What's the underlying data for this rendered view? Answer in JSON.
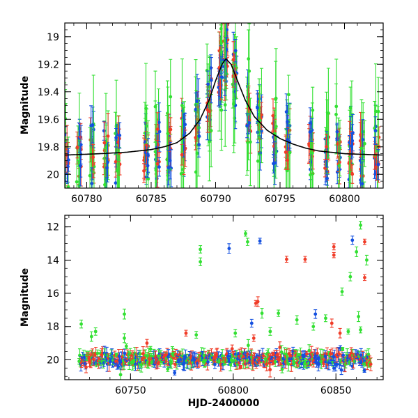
{
  "chart_data": [
    {
      "type": "scatter",
      "panel": "top",
      "title": "",
      "xlabel": "",
      "ylabel": "Magnitude",
      "xlim": [
        60778.3,
        60803
      ],
      "ylim": [
        20.1,
        18.9
      ],
      "y_inverted": true,
      "grid": false,
      "xticks": [
        60780,
        60785,
        60790,
        60795,
        60800
      ],
      "xtick_labels": [
        "60780",
        "60785",
        "60790",
        "60795",
        "60800"
      ],
      "yticks": [
        19,
        19.2,
        19.4,
        19.6,
        19.8,
        20
      ],
      "ytick_labels": [
        "19",
        "19.2",
        "19.4",
        "19.6",
        "19.8",
        "20"
      ],
      "series_colors": {
        "green": "#33e033",
        "blue": "#1450e0",
        "red": "#f03c28"
      },
      "model_curve": {
        "color": "#000000",
        "x": [
          60778.3,
          60781,
          60783,
          60785,
          60786,
          60787,
          60788,
          60788.8,
          60789.5,
          60790,
          60790.5,
          60790.8,
          60791.2,
          60791.7,
          60792.3,
          60793,
          60794,
          60795,
          60796,
          60797,
          60798,
          60799,
          60800,
          60803
        ],
        "y": [
          19.86,
          19.85,
          19.84,
          19.82,
          19.8,
          19.77,
          19.7,
          19.6,
          19.46,
          19.32,
          19.2,
          19.16,
          19.2,
          19.32,
          19.46,
          19.58,
          19.68,
          19.74,
          19.78,
          19.81,
          19.83,
          19.84,
          19.85,
          19.86
        ]
      },
      "nights": [
        {
          "x": 60778.45,
          "n": 5
        },
        {
          "x": 60779.4,
          "n": 6
        },
        {
          "x": 60780.4,
          "n": 6
        },
        {
          "x": 60781.5,
          "n": 6
        },
        {
          "x": 60782.4,
          "n": 6
        },
        {
          "x": 60784.6,
          "n": 7
        },
        {
          "x": 60785.5,
          "n": 6
        },
        {
          "x": 60786.4,
          "n": 7
        },
        {
          "x": 60787.5,
          "n": 6
        },
        {
          "x": 60788.6,
          "n": 7
        },
        {
          "x": 60789.5,
          "n": 7
        },
        {
          "x": 60790.4,
          "n": 9
        },
        {
          "x": 60790.8,
          "n": 9
        },
        {
          "x": 60791.5,
          "n": 8
        },
        {
          "x": 60792.6,
          "n": 7
        },
        {
          "x": 60793.4,
          "n": 7
        },
        {
          "x": 60794.6,
          "n": 7
        },
        {
          "x": 60795.6,
          "n": 7
        },
        {
          "x": 60797.4,
          "n": 6
        },
        {
          "x": 60798.6,
          "n": 6
        },
        {
          "x": 60799.5,
          "n": 6
        },
        {
          "x": 60800.5,
          "n": 7
        },
        {
          "x": 60801.4,
          "n": 7
        },
        {
          "x": 60802.5,
          "n": 7
        }
      ]
    },
    {
      "type": "scatter",
      "panel": "bottom",
      "title": "",
      "xlabel": "HJD-2400000",
      "ylabel": "Magnitude",
      "xlim": [
        60718,
        60873
      ],
      "ylim": [
        21.2,
        11.3
      ],
      "y_inverted": true,
      "grid": false,
      "xticks": [
        60750,
        60800,
        60850
      ],
      "xtick_labels": [
        "60750",
        "60800",
        "60850"
      ],
      "yticks": [
        12,
        14,
        16,
        18,
        20
      ],
      "ytick_labels": [
        "12",
        "14",
        "16",
        "18",
        "20"
      ],
      "baseline": {
        "x_start": 60725,
        "x_end": 60867,
        "mag": 19.95,
        "scatter": 0.35
      },
      "outliers": [
        {
          "x": 60726,
          "y": 17.85,
          "c": "green"
        },
        {
          "x": 60731,
          "y": 18.6,
          "c": "green"
        },
        {
          "x": 60733,
          "y": 18.3,
          "c": "green"
        },
        {
          "x": 60747,
          "y": 17.25,
          "c": "green"
        },
        {
          "x": 60747,
          "y": 18.7,
          "c": "green"
        },
        {
          "x": 60758,
          "y": 19.0,
          "c": "red"
        },
        {
          "x": 60777,
          "y": 18.4,
          "c": "red"
        },
        {
          "x": 60782,
          "y": 18.5,
          "c": "green"
        },
        {
          "x": 60784,
          "y": 13.35,
          "c": "green"
        },
        {
          "x": 60784,
          "y": 14.1,
          "c": "green"
        },
        {
          "x": 60798,
          "y": 13.3,
          "c": "blue"
        },
        {
          "x": 60801,
          "y": 18.4,
          "c": "green"
        },
        {
          "x": 60806,
          "y": 12.4,
          "c": "green"
        },
        {
          "x": 60807,
          "y": 12.9,
          "c": "green"
        },
        {
          "x": 60809,
          "y": 17.8,
          "c": "blue"
        },
        {
          "x": 60810,
          "y": 18.7,
          "c": "red"
        },
        {
          "x": 60811,
          "y": 16.6,
          "c": "red"
        },
        {
          "x": 60812,
          "y": 16.5,
          "c": "red"
        },
        {
          "x": 60813,
          "y": 12.85,
          "c": "blue"
        },
        {
          "x": 60814,
          "y": 17.2,
          "c": "green"
        },
        {
          "x": 60818,
          "y": 18.3,
          "c": "green"
        },
        {
          "x": 60822,
          "y": 17.2,
          "c": "green"
        },
        {
          "x": 60826,
          "y": 13.95,
          "c": "red"
        },
        {
          "x": 60831,
          "y": 17.6,
          "c": "green"
        },
        {
          "x": 60835,
          "y": 13.95,
          "c": "red"
        },
        {
          "x": 60839,
          "y": 18.0,
          "c": "green"
        },
        {
          "x": 60840,
          "y": 17.25,
          "c": "blue"
        },
        {
          "x": 60845,
          "y": 17.5,
          "c": "green"
        },
        {
          "x": 60848,
          "y": 17.8,
          "c": "red"
        },
        {
          "x": 60849,
          "y": 13.2,
          "c": "red"
        },
        {
          "x": 60849,
          "y": 13.7,
          "c": "red"
        },
        {
          "x": 60852,
          "y": 18.4,
          "c": "red"
        },
        {
          "x": 60853,
          "y": 15.9,
          "c": "green"
        },
        {
          "x": 60856,
          "y": 18.3,
          "c": "green"
        },
        {
          "x": 60858,
          "y": 12.8,
          "c": "blue"
        },
        {
          "x": 60860,
          "y": 13.5,
          "c": "green"
        },
        {
          "x": 60861,
          "y": 17.4,
          "c": "green"
        },
        {
          "x": 60862,
          "y": 18.2,
          "c": "green"
        },
        {
          "x": 60862,
          "y": 11.9,
          "c": "green"
        },
        {
          "x": 60864,
          "y": 12.9,
          "c": "red"
        },
        {
          "x": 60864,
          "y": 15.05,
          "c": "red"
        },
        {
          "x": 60865,
          "y": 14.0,
          "c": "green"
        },
        {
          "x": 60857,
          "y": 15.0,
          "c": "green"
        }
      ]
    }
  ]
}
